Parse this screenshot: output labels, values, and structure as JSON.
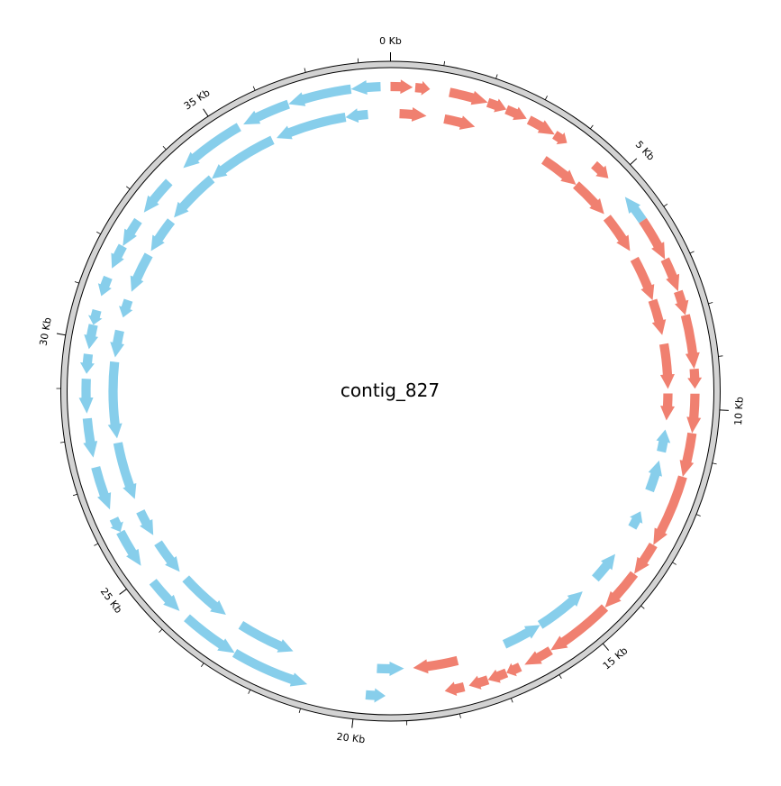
{
  "diagram": {
    "title": "contig_827",
    "genome_length_kb": 38.6,
    "tick_labels": [
      {
        "label": "0 Kb",
        "kb": 0
      },
      {
        "label": "5 Kb",
        "kb": 5
      },
      {
        "label": "10 Kb",
        "kb": 10
      },
      {
        "label": "15 Kb",
        "kb": 15
      },
      {
        "label": "20 Kb",
        "kb": 20
      },
      {
        "label": "25 Kb",
        "kb": 25
      },
      {
        "label": "30 Kb",
        "kb": 30
      },
      {
        "label": "35 Kb",
        "kb": 35
      }
    ],
    "minor_tick_step_kb": 1,
    "colors": {
      "forward": "#f08070",
      "reverse": "#87ceeb",
      "backbone_fill": "#d3d3d3",
      "backbone_stroke": "#000000"
    },
    "genes": [
      {
        "start": 0.0,
        "end": 0.45,
        "strand": "+",
        "track": 1
      },
      {
        "start": 0.5,
        "end": 0.8,
        "strand": "+",
        "track": 1
      },
      {
        "start": 1.2,
        "end": 2.0,
        "strand": "+",
        "track": 1
      },
      {
        "start": 2.0,
        "end": 2.4,
        "strand": "+",
        "track": 1
      },
      {
        "start": 2.4,
        "end": 2.85,
        "strand": "+",
        "track": 1
      },
      {
        "start": 2.9,
        "end": 3.5,
        "strand": "+",
        "track": 1
      },
      {
        "start": 3.5,
        "end": 3.8,
        "strand": "+",
        "track": 1
      },
      {
        "start": 4.5,
        "end": 4.9,
        "strand": "+",
        "track": 1
      },
      {
        "start": 5.4,
        "end": 6.0,
        "strand": "-",
        "track": 1
      },
      {
        "start": 6.0,
        "end": 6.9,
        "strand": "+",
        "track": 1
      },
      {
        "start": 6.9,
        "end": 7.6,
        "strand": "+",
        "track": 1
      },
      {
        "start": 7.6,
        "end": 8.1,
        "strand": "+",
        "track": 1
      },
      {
        "start": 8.1,
        "end": 9.2,
        "strand": "+",
        "track": 1
      },
      {
        "start": 9.2,
        "end": 9.6,
        "strand": "+",
        "track": 1
      },
      {
        "start": 9.7,
        "end": 10.5,
        "strand": "+",
        "track": 1
      },
      {
        "start": 10.5,
        "end": 11.4,
        "strand": "+",
        "track": 1
      },
      {
        "start": 11.4,
        "end": 12.9,
        "strand": "+",
        "track": 1
      },
      {
        "start": 12.9,
        "end": 13.6,
        "strand": "+",
        "track": 1
      },
      {
        "start": 13.6,
        "end": 14.5,
        "strand": "+",
        "track": 1
      },
      {
        "start": 14.5,
        "end": 15.9,
        "strand": "+",
        "track": 1
      },
      {
        "start": 15.9,
        "end": 16.5,
        "strand": "+",
        "track": 1
      },
      {
        "start": 16.6,
        "end": 16.9,
        "strand": "+",
        "track": 1
      },
      {
        "start": 16.9,
        "end": 17.3,
        "strand": "+",
        "track": 1
      },
      {
        "start": 17.3,
        "end": 17.7,
        "strand": "+",
        "track": 1
      },
      {
        "start": 17.8,
        "end": 18.2,
        "strand": "+",
        "track": 1
      },
      {
        "start": 19.4,
        "end": 19.8,
        "strand": "-",
        "track": 1
      },
      {
        "start": 21.0,
        "end": 22.6,
        "strand": "-",
        "track": 1
      },
      {
        "start": 22.6,
        "end": 23.8,
        "strand": "-",
        "track": 1
      },
      {
        "start": 24.0,
        "end": 24.8,
        "strand": "-",
        "track": 1
      },
      {
        "start": 25.2,
        "end": 26.0,
        "strand": "-",
        "track": 1
      },
      {
        "start": 26.0,
        "end": 26.3,
        "strand": "-",
        "track": 1
      },
      {
        "start": 26.5,
        "end": 27.4,
        "strand": "-",
        "track": 1
      },
      {
        "start": 27.6,
        "end": 28.4,
        "strand": "-",
        "track": 1
      },
      {
        "start": 28.5,
        "end": 29.2,
        "strand": "-",
        "track": 1
      },
      {
        "start": 29.3,
        "end": 29.7,
        "strand": "-",
        "track": 1
      },
      {
        "start": 29.8,
        "end": 30.3,
        "strand": "-",
        "track": 1
      },
      {
        "start": 30.3,
        "end": 30.6,
        "strand": "-",
        "track": 1
      },
      {
        "start": 30.9,
        "end": 31.3,
        "strand": "-",
        "track": 1
      },
      {
        "start": 31.5,
        "end": 32.0,
        "strand": "-",
        "track": 1
      },
      {
        "start": 32.0,
        "end": 32.6,
        "strand": "-",
        "track": 1
      },
      {
        "start": 32.8,
        "end": 33.6,
        "strand": "-",
        "track": 1
      },
      {
        "start": 34.0,
        "end": 35.4,
        "strand": "-",
        "track": 1
      },
      {
        "start": 35.5,
        "end": 36.5,
        "strand": "-",
        "track": 1
      },
      {
        "start": 36.5,
        "end": 37.8,
        "strand": "-",
        "track": 1
      },
      {
        "start": 37.8,
        "end": 38.4,
        "strand": "-",
        "track": 1
      },
      {
        "start": 0.2,
        "end": 0.8,
        "strand": "+",
        "track": 2
      },
      {
        "start": 1.2,
        "end": 1.9,
        "strand": "+",
        "track": 2
      },
      {
        "start": 3.6,
        "end": 4.5,
        "strand": "+",
        "track": 2
      },
      {
        "start": 4.5,
        "end": 5.4,
        "strand": "+",
        "track": 2
      },
      {
        "start": 5.5,
        "end": 6.4,
        "strand": "+",
        "track": 2
      },
      {
        "start": 6.6,
        "end": 7.6,
        "strand": "+",
        "track": 2
      },
      {
        "start": 7.6,
        "end": 8.4,
        "strand": "+",
        "track": 2
      },
      {
        "start": 8.6,
        "end": 9.6,
        "strand": "+",
        "track": 2
      },
      {
        "start": 9.7,
        "end": 10.3,
        "strand": "+",
        "track": 2
      },
      {
        "start": 10.5,
        "end": 11.0,
        "strand": "-",
        "track": 2
      },
      {
        "start": 11.2,
        "end": 11.9,
        "strand": "-",
        "track": 2
      },
      {
        "start": 12.4,
        "end": 12.8,
        "strand": "-",
        "track": 2
      },
      {
        "start": 13.5,
        "end": 14.2,
        "strand": "-",
        "track": 2
      },
      {
        "start": 14.6,
        "end": 15.8,
        "strand": "-",
        "track": 2
      },
      {
        "start": 15.8,
        "end": 16.7,
        "strand": "-",
        "track": 2
      },
      {
        "start": 17.8,
        "end": 18.8,
        "strand": "+",
        "track": 2
      },
      {
        "start": 19.0,
        "end": 19.6,
        "strand": "-",
        "track": 2
      },
      {
        "start": 21.5,
        "end": 22.8,
        "strand": "-",
        "track": 2
      },
      {
        "start": 23.2,
        "end": 24.4,
        "strand": "-",
        "track": 2
      },
      {
        "start": 24.6,
        "end": 25.4,
        "strand": "-",
        "track": 2
      },
      {
        "start": 25.6,
        "end": 26.2,
        "strand": "-",
        "track": 2
      },
      {
        "start": 26.5,
        "end": 27.8,
        "strand": "-",
        "track": 2
      },
      {
        "start": 27.9,
        "end": 29.6,
        "strand": "-",
        "track": 2
      },
      {
        "start": 29.7,
        "end": 30.3,
        "strand": "-",
        "track": 2
      },
      {
        "start": 30.6,
        "end": 31.0,
        "strand": "-",
        "track": 2
      },
      {
        "start": 31.2,
        "end": 32.1,
        "strand": "-",
        "track": 2
      },
      {
        "start": 32.2,
        "end": 33.0,
        "strand": "-",
        "track": 2
      },
      {
        "start": 33.1,
        "end": 34.3,
        "strand": "-",
        "track": 2
      },
      {
        "start": 34.3,
        "end": 35.9,
        "strand": "-",
        "track": 2
      },
      {
        "start": 36.0,
        "end": 37.6,
        "strand": "-",
        "track": 2
      },
      {
        "start": 37.6,
        "end": 38.1,
        "strand": "-",
        "track": 2
      }
    ]
  }
}
